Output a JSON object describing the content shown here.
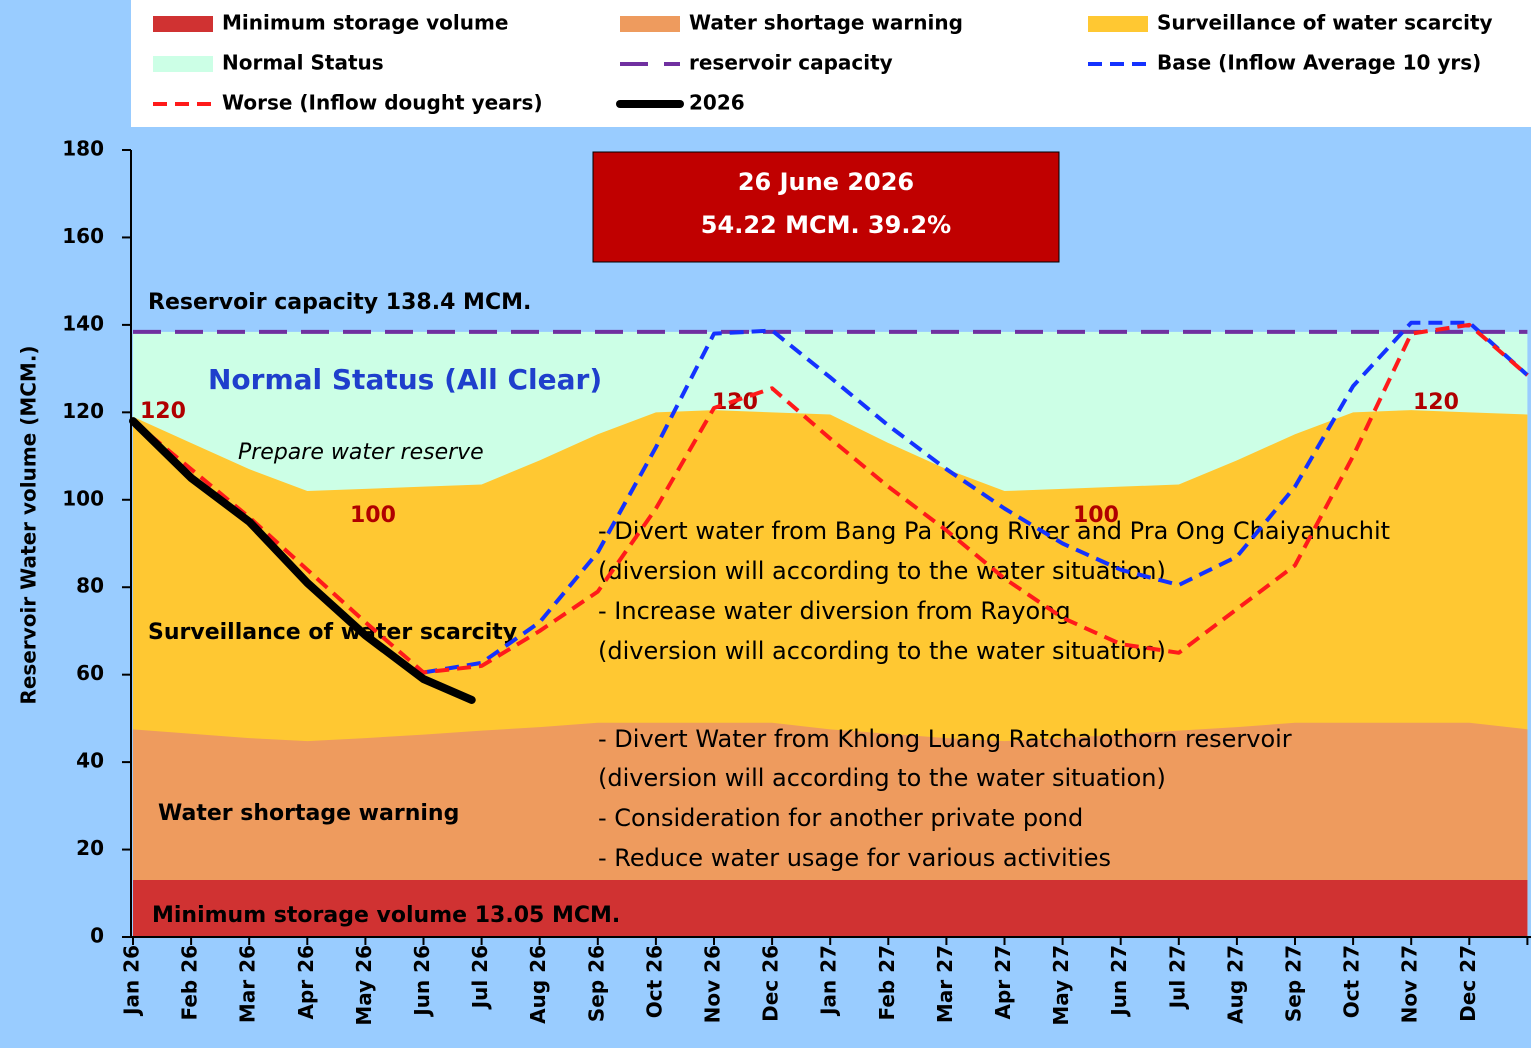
{
  "chart_data": {
    "type": "area",
    "y_axis_label": "Reservoir Water volume (MCM.)",
    "categories": [
      "Jan 26",
      "Feb 26",
      "Mar 26",
      "Apr 26",
      "May 26",
      "Jun 26",
      "Jul 26",
      "Aug 26",
      "Sep 26",
      "Oct 26",
      "Nov 26",
      "Dec 26",
      "Jan 27",
      "Feb 27",
      "Mar 27",
      "Apr 27",
      "May 27",
      "Jun 27",
      "Jul 27",
      "Aug 27",
      "Sep 27",
      "Oct 27",
      "Nov 27",
      "Dec 27",
      null
    ],
    "ylim": [
      0,
      180
    ],
    "yticks": [
      0,
      20,
      40,
      60,
      80,
      100,
      120,
      140,
      160,
      180
    ],
    "series": [
      {
        "name": "Minimum storage volume",
        "kind": "area",
        "color": "#d03232",
        "values": [
          13.05,
          13.05,
          13.05,
          13.05,
          13.05,
          13.05,
          13.05,
          13.05,
          13.05,
          13.05,
          13.05,
          13.05,
          13.05,
          13.05,
          13.05,
          13.05,
          13.05,
          13.05,
          13.05,
          13.05,
          13.05,
          13.05,
          13.05,
          13.05,
          13.05
        ]
      },
      {
        "name": "Water shortage warning",
        "kind": "area",
        "color": "#ee9b5e",
        "values": [
          47.5,
          46.5,
          45.5,
          44.8,
          45.5,
          46.3,
          47.2,
          48,
          49,
          49,
          49,
          49,
          47.5,
          46.5,
          45.5,
          44.8,
          45.5,
          46.3,
          47.2,
          48,
          49,
          49,
          49,
          49,
          47.5
        ]
      },
      {
        "name": "Surveillance of water scarcity",
        "kind": "area",
        "color": "#ffc832",
        "values": [
          119,
          113,
          107,
          102,
          102.5,
          103,
          103.5,
          109,
          115,
          120,
          120.5,
          120,
          119.5,
          113,
          107,
          102,
          102.5,
          103,
          103.5,
          109,
          115,
          120,
          120.5,
          120,
          119.5
        ]
      },
      {
        "name": "Normal Status",
        "kind": "area",
        "color": "#ccffe6",
        "values": [
          138.4,
          138.4,
          138.4,
          138.4,
          138.4,
          138.4,
          138.4,
          138.4,
          138.4,
          138.4,
          138.4,
          138.4,
          138.4,
          138.4,
          138.4,
          138.4,
          138.4,
          138.4,
          138.4,
          138.4,
          138.4,
          138.4,
          138.4,
          138.4,
          138.4
        ]
      },
      {
        "name": "reservoir capacity",
        "kind": "line",
        "dash": "long",
        "color": "#7030a0",
        "values": [
          138.4,
          138.4,
          138.4,
          138.4,
          138.4,
          138.4,
          138.4,
          138.4,
          138.4,
          138.4,
          138.4,
          138.4,
          138.4,
          138.4,
          138.4,
          138.4,
          138.4,
          138.4,
          138.4,
          138.4,
          138.4,
          138.4,
          138.4,
          138.4,
          138.4
        ]
      },
      {
        "name": "Base (Inflow Average 10 yrs)",
        "kind": "line",
        "dash": "short",
        "color": "#1432ff",
        "values": [
          null,
          null,
          null,
          null,
          null,
          60.5,
          62.7,
          72,
          88,
          112,
          138,
          138.7,
          128,
          117,
          107,
          98,
          90,
          84,
          80.5,
          87,
          103,
          126,
          140.5,
          140.5,
          128.5
        ]
      },
      {
        "name": "Worse (Inflow dought years)",
        "kind": "line",
        "dash": "short",
        "color": "#ff1a1a",
        "values": [
          118,
          107,
          96,
          84,
          72,
          60.5,
          62,
          70,
          79,
          98,
          121,
          125.5,
          114,
          103,
          93,
          82,
          73,
          67,
          65,
          75,
          85,
          110,
          138,
          140,
          128.5
        ]
      },
      {
        "name": "2026",
        "kind": "line",
        "dash": "solid",
        "color": "#000000",
        "x": [
          0,
          1,
          2,
          3,
          4,
          5,
          5.83
        ],
        "values": [
          118,
          105,
          95,
          81,
          69,
          59,
          54.22
        ]
      }
    ],
    "annotations": [
      "26 June 2026",
      "54.22 MCM. 39.2%",
      "Reservoir capacity 138.4 MCM.",
      "Normal Status (All Clear)",
      "Prepare water reserve",
      "120",
      "120",
      "120",
      "100",
      "100",
      "Surveillance of water scarcity",
      "Water shortage warning",
      "Minimum storage volume  13.05 MCM.",
      "- Divert water from Bang Pa Kong River and Pra Ong Chaiyanuchit",
      "(diversion will according to the water situation)",
      "- Increase water diversion from Rayong",
      "(diversion will according to the water situation)",
      "- Divert Water from Khlong Luang Ratchalothorn reservoir",
      "(diversion will according to the water situation)",
      "- Consideration for another private pond",
      "- Reduce water usage for various activities"
    ]
  }
}
